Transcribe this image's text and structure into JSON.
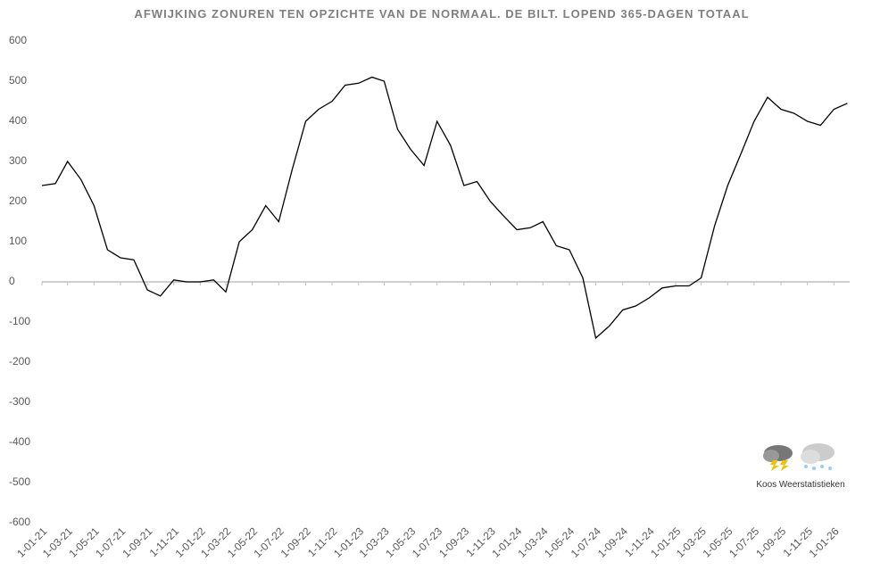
{
  "chart_data": {
    "type": "line",
    "title": "AFWIJKING ZONUREN TEN OPZICHTE VAN DE NORMAAL. DE BILT. LOPEND 365-DAGEN TOTAAL",
    "credit": "Koos Weerstatistieken",
    "x": [
      "2021-01-01",
      "2021-02-01",
      "2021-03-01",
      "2021-04-01",
      "2021-05-01",
      "2021-06-01",
      "2021-07-01",
      "2021-08-01",
      "2021-09-01",
      "2021-10-01",
      "2021-11-01",
      "2021-12-01",
      "2022-01-01",
      "2022-02-01",
      "2022-03-01",
      "2022-04-01",
      "2022-05-01",
      "2022-06-01",
      "2022-07-01",
      "2022-08-01",
      "2022-09-01",
      "2022-10-01",
      "2022-11-01",
      "2022-12-01",
      "2023-01-01",
      "2023-02-01",
      "2023-03-01",
      "2023-04-01",
      "2023-05-01",
      "2023-06-01",
      "2023-07-01",
      "2023-08-01",
      "2023-09-01",
      "2023-10-01",
      "2023-11-01",
      "2023-12-01",
      "2024-01-01",
      "2024-02-01",
      "2024-03-01",
      "2024-04-01",
      "2024-05-01",
      "2024-06-01",
      "2024-07-01",
      "2024-08-01",
      "2024-09-01",
      "2024-10-01",
      "2024-11-01",
      "2024-12-01",
      "2025-01-01",
      "2025-02-01",
      "2025-03-01",
      "2025-04-01",
      "2025-05-01",
      "2025-06-01",
      "2025-07-01",
      "2025-08-01",
      "2025-09-01",
      "2025-10-01",
      "2025-11-01",
      "2025-12-01",
      "2026-01-01",
      "2026-02-01"
    ],
    "series": [
      {
        "name": "Afwijking",
        "color": "#000000",
        "values": [
          240,
          245,
          300,
          255,
          190,
          80,
          60,
          55,
          -20,
          -35,
          5,
          0,
          0,
          5,
          -25,
          100,
          130,
          190,
          150,
          280,
          400,
          430,
          450,
          490,
          495,
          510,
          500,
          380,
          330,
          290,
          400,
          340,
          240,
          250,
          200,
          165,
          130,
          135,
          150,
          90,
          80,
          10,
          -140,
          -110,
          -70,
          -60,
          -40,
          -15,
          -10,
          -10,
          10,
          140,
          240,
          320,
          400,
          460,
          430,
          420,
          400,
          390,
          430,
          445
        ]
      }
    ],
    "xlim": [
      "2021-01-01",
      "2026-03-01"
    ],
    "xticks": [
      {
        "value": "2021-01-01",
        "label": "1-01-21"
      },
      {
        "value": "2021-03-01",
        "label": "1-03-21"
      },
      {
        "value": "2021-05-01",
        "label": "1-05-21"
      },
      {
        "value": "2021-07-01",
        "label": "1-07-21"
      },
      {
        "value": "2021-09-01",
        "label": "1-09-21"
      },
      {
        "value": "2021-11-01",
        "label": "1-11-21"
      },
      {
        "value": "2022-01-01",
        "label": "1-01-22"
      },
      {
        "value": "2022-03-01",
        "label": "1-03-22"
      },
      {
        "value": "2022-05-01",
        "label": "1-05-22"
      },
      {
        "value": "2022-07-01",
        "label": "1-07-22"
      },
      {
        "value": "2022-09-01",
        "label": "1-09-22"
      },
      {
        "value": "2022-11-01",
        "label": "1-11-22"
      },
      {
        "value": "2023-01-01",
        "label": "1-01-23"
      },
      {
        "value": "2023-03-01",
        "label": "1-03-23"
      },
      {
        "value": "2023-05-01",
        "label": "1-05-23"
      },
      {
        "value": "2023-07-01",
        "label": "1-07-23"
      },
      {
        "value": "2023-09-01",
        "label": "1-09-23"
      },
      {
        "value": "2023-11-01",
        "label": "1-11-23"
      },
      {
        "value": "2024-01-01",
        "label": "1-01-24"
      },
      {
        "value": "2024-03-01",
        "label": "1-03-24"
      },
      {
        "value": "2024-05-01",
        "label": "1-05-24"
      },
      {
        "value": "2024-07-01",
        "label": "1-07-24"
      },
      {
        "value": "2024-09-01",
        "label": "1-09-24"
      },
      {
        "value": "2024-11-01",
        "label": "1-11-24"
      },
      {
        "value": "2025-01-01",
        "label": "1-01-25"
      },
      {
        "value": "2025-03-01",
        "label": "1-03-25"
      },
      {
        "value": "2025-05-01",
        "label": "1-05-25"
      },
      {
        "value": "2025-07-01",
        "label": "1-07-25"
      },
      {
        "value": "2025-09-01",
        "label": "1-09-25"
      },
      {
        "value": "2025-11-01",
        "label": "1-11-25"
      },
      {
        "value": "2026-01-01",
        "label": "1-01-26"
      }
    ],
    "ylim": [
      -600,
      600
    ],
    "yticks": [
      -600,
      -500,
      -400,
      -300,
      -200,
      -100,
      0,
      100,
      200,
      300,
      400,
      500,
      600
    ],
    "zero_line_color": "#bfbfbf",
    "grid": false
  }
}
